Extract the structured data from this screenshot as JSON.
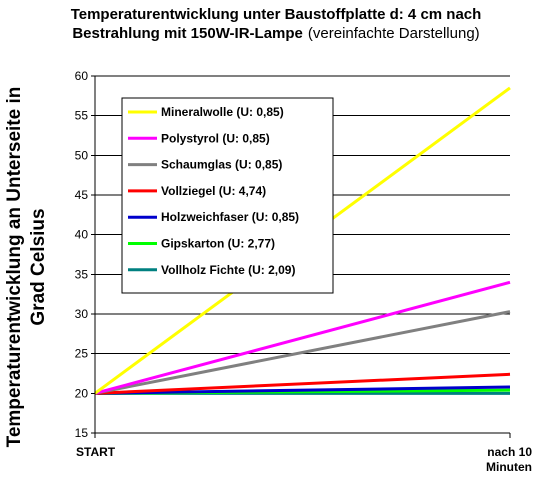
{
  "chart_data": {
    "type": "line",
    "title_line1": "Temperaturentwicklung unter Baustoffplatte d: 4 cm nach",
    "title_line2_bold": "Bestrahlung mit 150W-IR-Lampe",
    "title_line2_normal": "(vereinfachte Darstellung)",
    "ylabel_line1": "Temperaturentwicklung an Unterseite in",
    "ylabel_line2": "Grad Celsius",
    "x": [
      "START",
      "nach 10 Minuten"
    ],
    "x_tick_labels": [
      [
        "START"
      ],
      [
        "nach 10",
        "Minuten"
      ]
    ],
    "ylim": [
      15,
      60
    ],
    "yticks": [
      15,
      20,
      25,
      30,
      35,
      40,
      45,
      50,
      55,
      60
    ],
    "legend_position": "upper-left inside plot",
    "series": [
      {
        "name": "Mineralwolle (U: 0,85)",
        "color": "#ffff00",
        "values": [
          20,
          58.5
        ]
      },
      {
        "name": "Polystyrol (U: 0,85)",
        "color": "#ff00ff",
        "values": [
          20,
          34
        ]
      },
      {
        "name": "Schaumglas (U: 0,85)",
        "color": "#808080",
        "values": [
          20,
          30.3
        ]
      },
      {
        "name": "Vollziegel (U: 4,74)",
        "color": "#ff0000",
        "values": [
          20,
          22.4
        ]
      },
      {
        "name": "Holzweichfaser (U: 0,85)",
        "color": "#0000cc",
        "values": [
          20,
          20.8
        ]
      },
      {
        "name": "Gipskarton (U: 2,77)",
        "color": "#00ff00",
        "values": [
          20,
          20.4
        ]
      },
      {
        "name": "Vollholz Fichte (U: 2,09)",
        "color": "#008080",
        "values": [
          20,
          20
        ]
      }
    ]
  }
}
